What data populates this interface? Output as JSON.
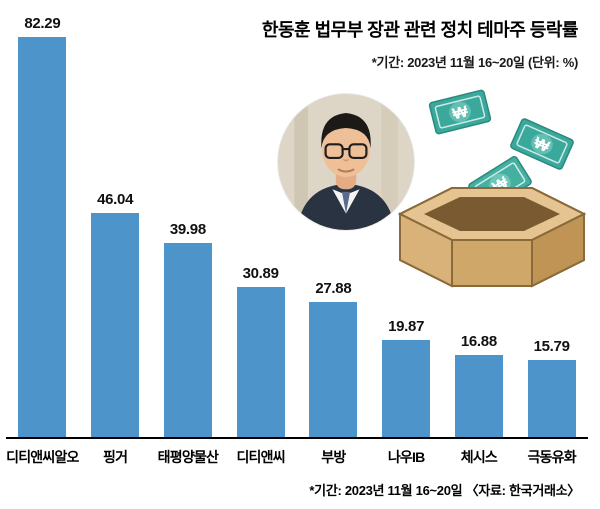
{
  "header": {
    "title": "한동훈 법무부 장관 관련 정치 테마주 등락률",
    "subtitle": "*기간: 2023년 11월 16~20일  (단위: %)"
  },
  "footer": {
    "caption": "*기간: 2023년 11월 16~20일 〈자료: 한국거래소〉"
  },
  "chart_data": {
    "type": "bar",
    "title": "한동훈 법무부 장관 관련 정치 테마주 등락률",
    "categories": [
      "디티앤씨알오",
      "핑거",
      "태평양물산",
      "디티앤씨",
      "부방",
      "나우IB",
      "체시스",
      "극동유화"
    ],
    "values": [
      82.29,
      46.04,
      39.98,
      30.89,
      27.88,
      19.87,
      16.88,
      15.79
    ],
    "unit": "%",
    "period": "2023년 11월 16~20일",
    "source": "한국거래소",
    "bar_color": "#4c94c9",
    "ylim": [
      0,
      85
    ],
    "grid": false,
    "legend": "none",
    "value_labels": "above-bars"
  },
  "illustration": {
    "portrait": "han-dong-hoon-portrait-photo",
    "money_symbol": "₩",
    "note_color": "#3aa89b",
    "box_color": "#dcb57e"
  }
}
